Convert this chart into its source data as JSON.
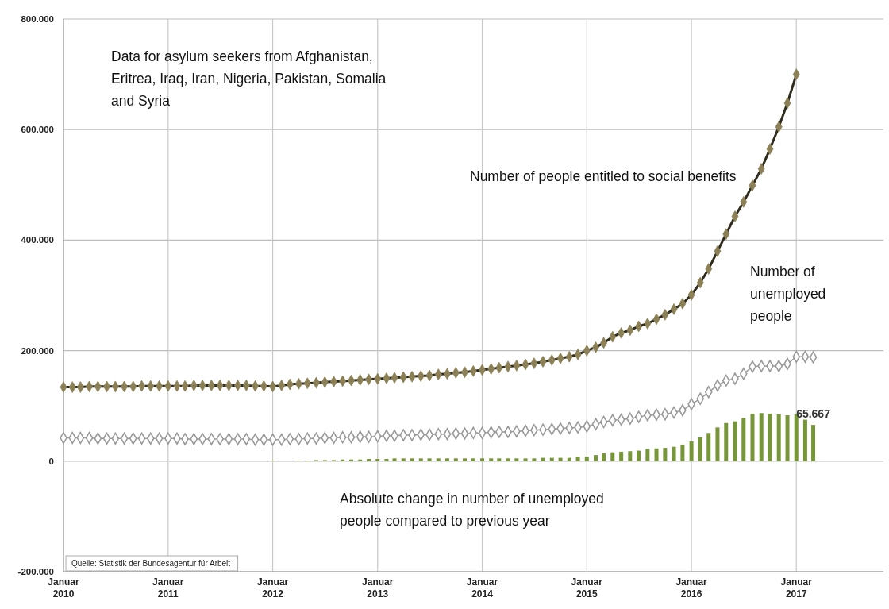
{
  "chart_data": {
    "type": "line",
    "x": [
      "2010-01",
      "2010-02",
      "2010-03",
      "2010-04",
      "2010-05",
      "2010-06",
      "2010-07",
      "2010-08",
      "2010-09",
      "2010-10",
      "2010-11",
      "2010-12",
      "2011-01",
      "2011-02",
      "2011-03",
      "2011-04",
      "2011-05",
      "2011-06",
      "2011-07",
      "2011-08",
      "2011-09",
      "2011-10",
      "2011-11",
      "2011-12",
      "2012-01",
      "2012-02",
      "2012-03",
      "2012-04",
      "2012-05",
      "2012-06",
      "2012-07",
      "2012-08",
      "2012-09",
      "2012-10",
      "2012-11",
      "2012-12",
      "2013-01",
      "2013-02",
      "2013-03",
      "2013-04",
      "2013-05",
      "2013-06",
      "2013-07",
      "2013-08",
      "2013-09",
      "2013-10",
      "2013-11",
      "2013-12",
      "2014-01",
      "2014-02",
      "2014-03",
      "2014-04",
      "2014-05",
      "2014-06",
      "2014-07",
      "2014-08",
      "2014-09",
      "2014-10",
      "2014-11",
      "2014-12",
      "2015-01",
      "2015-02",
      "2015-03",
      "2015-04",
      "2015-05",
      "2015-06",
      "2015-07",
      "2015-08",
      "2015-09",
      "2015-10",
      "2015-11",
      "2015-12",
      "2016-01",
      "2016-02",
      "2016-03",
      "2016-04",
      "2016-05",
      "2016-06",
      "2016-07",
      "2016-08",
      "2016-09",
      "2016-10",
      "2016-11",
      "2016-12",
      "2017-01",
      "2017-02",
      "2017-03"
    ],
    "series": [
      {
        "name": "Absolute change in number of unemployed people compared to previous year",
        "type": "bar",
        "color": "#77963a",
        "values": [
          0,
          0,
          0,
          0,
          0,
          0,
          0,
          0,
          0,
          0,
          0,
          0,
          0,
          0,
          0,
          0,
          0,
          0,
          0,
          0,
          0,
          0,
          0,
          0,
          1000,
          0,
          0,
          1000,
          1000,
          2000,
          2000,
          2000,
          3000,
          3000,
          3000,
          4000,
          4000,
          4000,
          5000,
          5000,
          5000,
          5000,
          5000,
          5000,
          5000,
          5000,
          5000,
          5000,
          5000,
          5000,
          5000,
          5000,
          5000,
          5000,
          5000,
          6000,
          6000,
          6000,
          6000,
          7000,
          8000,
          11000,
          14000,
          16000,
          17000,
          18000,
          19000,
          22000,
          23000,
          24000,
          26000,
          30000,
          36000,
          43000,
          51000,
          61000,
          69000,
          72000,
          78000,
          86000,
          87000,
          86000,
          85000,
          83000,
          85000,
          75000,
          65667
        ],
        "value_labels": [
          null,
          null,
          null,
          null,
          null,
          null,
          null,
          null,
          null,
          null,
          null,
          null,
          null,
          null,
          null,
          null,
          null,
          null,
          null,
          null,
          null,
          null,
          null,
          null,
          null,
          null,
          null,
          null,
          null,
          null,
          null,
          null,
          null,
          null,
          null,
          null,
          null,
          null,
          null,
          null,
          null,
          null,
          null,
          null,
          null,
          null,
          null,
          null,
          null,
          null,
          null,
          null,
          null,
          null,
          null,
          null,
          null,
          null,
          null,
          null,
          null,
          null,
          null,
          null,
          null,
          null,
          null,
          null,
          null,
          null,
          null,
          null,
          null,
          null,
          null,
          null,
          null,
          null,
          null,
          null,
          null,
          null,
          null,
          null,
          null,
          null,
          "65.667"
        ]
      },
      {
        "name": "Number of people entitled to social benefits",
        "color": "#8c8056",
        "values": [
          134000,
          134000,
          134000,
          135000,
          135000,
          135000,
          135000,
          135000,
          135000,
          136000,
          136000,
          136000,
          136000,
          136000,
          136000,
          137000,
          137000,
          137000,
          137000,
          137000,
          137000,
          137000,
          136000,
          136000,
          135000,
          137000,
          139000,
          140000,
          141000,
          142000,
          143000,
          144000,
          145000,
          146000,
          147000,
          148000,
          149000,
          150000,
          151000,
          152000,
          153000,
          154000,
          155000,
          157000,
          158000,
          160000,
          161000,
          163000,
          165000,
          167000,
          169000,
          171000,
          173000,
          175000,
          177000,
          180000,
          183000,
          186000,
          189000,
          193000,
          200000,
          206000,
          214000,
          225000,
          232000,
          237000,
          244000,
          249000,
          257000,
          265000,
          275000,
          285000,
          301000,
          323000,
          348000,
          380000,
          411000,
          443000,
          469000,
          499000,
          529000,
          565000,
          605000,
          648000,
          700000,
          null,
          null
        ]
      },
      {
        "name": "Number of unemployed people",
        "color": "#9a9a9a",
        "values": [
          42000,
          42000,
          42000,
          42000,
          41000,
          41000,
          41000,
          41000,
          41000,
          41000,
          41000,
          41000,
          41000,
          41000,
          40000,
          40000,
          40000,
          40000,
          40000,
          40000,
          40000,
          40000,
          39000,
          39000,
          39000,
          39000,
          40000,
          40000,
          41000,
          41000,
          42000,
          42000,
          43000,
          43000,
          44000,
          44000,
          45000,
          46000,
          46000,
          47000,
          47000,
          48000,
          48000,
          49000,
          49000,
          50000,
          50000,
          51000,
          51000,
          52000,
          53000,
          53000,
          54000,
          55000,
          56000,
          57000,
          58000,
          59000,
          60000,
          61000,
          63000,
          67000,
          71000,
          74000,
          75000,
          77000,
          80000,
          83000,
          84000,
          85000,
          88000,
          92000,
          103000,
          113000,
          125000,
          137000,
          146000,
          149000,
          158000,
          171000,
          172000,
          172000,
          172000,
          176000,
          189000,
          189000,
          188000
        ]
      }
    ],
    "xlim": [
      "2010-01",
      "2017-11"
    ],
    "xticks": [
      {
        "value": "2010-01",
        "label": "Januar 2010"
      },
      {
        "value": "2011-01",
        "label": "Januar 2011"
      },
      {
        "value": "2012-01",
        "label": "Januar 2012"
      },
      {
        "value": "2013-01",
        "label": "Januar 2013"
      },
      {
        "value": "2014-01",
        "label": "Januar 2014"
      },
      {
        "value": "2015-01",
        "label": "Januar 2015"
      },
      {
        "value": "2016-01",
        "label": "Januar 2016"
      },
      {
        "value": "2017-01",
        "label": "Januar 2017"
      }
    ],
    "ylim": [
      -200000,
      800000
    ],
    "yticks": [
      {
        "value": -200000,
        "label": "-200.000"
      },
      {
        "value": 0,
        "label": "0"
      },
      {
        "value": 200000,
        "label": "200.000"
      },
      {
        "value": 400000,
        "label": "400.000"
      },
      {
        "value": 600000,
        "label": "600.000"
      },
      {
        "value": 800000,
        "label": "800.000"
      }
    ],
    "grid": true,
    "marker": "diamond",
    "annotations": [
      "Data for asylum seekers from Afghanistan, Eritrea, Iraq, Iran, Nigeria, Pakistan, Somalia and Syria",
      "Quelle: Statistik der Bundesagentur für Arbeit"
    ]
  }
}
